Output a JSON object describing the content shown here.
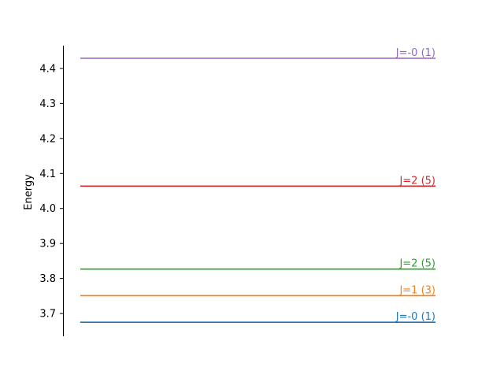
{
  "chart_data": {
    "type": "line",
    "title": "",
    "xlabel": "",
    "ylabel": "Energy",
    "ylim": [
      3.635,
      4.465
    ],
    "grid": false,
    "yticks": [
      3.7,
      3.8,
      3.9,
      4.0,
      4.1,
      4.2,
      4.3,
      4.4
    ],
    "ytick_labels": [
      "3.7",
      "3.8",
      "3.9",
      "4.0",
      "4.1",
      "4.2",
      "4.3",
      "4.4"
    ],
    "levels": [
      {
        "energy": 3.675,
        "label": "J=-0 (1)",
        "color": "#1f77b4"
      },
      {
        "energy": 3.751,
        "label": "J=1 (3)",
        "color": "#ff7f0e"
      },
      {
        "energy": 3.827,
        "label": "J=2 (5)",
        "color": "#2ca02c"
      },
      {
        "energy": 4.064,
        "label": "J=2 (5)",
        "color": "#d62728"
      },
      {
        "energy": 4.429,
        "label": "J=-0 (1)",
        "color": "#9467bd"
      }
    ]
  }
}
